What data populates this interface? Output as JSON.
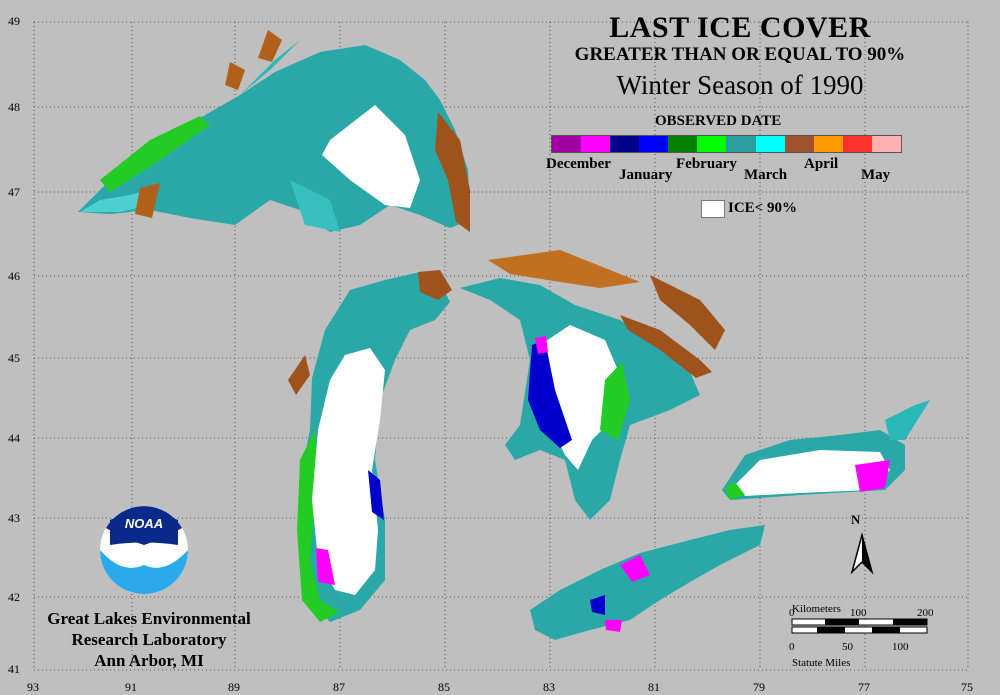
{
  "title": {
    "line1": "LAST ICE COVER",
    "line2": "GREATER THAN OR EQUAL TO 90%",
    "line3": "Winter Season of 1990"
  },
  "legend": {
    "heading": "OBSERVED DATE",
    "months": [
      "December",
      "January",
      "February",
      "March",
      "April",
      "May"
    ],
    "colors": [
      "#a000a0",
      "#ff00ff",
      "#00008b",
      "#0000ff",
      "#008000",
      "#00ff00",
      "#2a9d9d",
      "#00ffff",
      "#a0522d",
      "#ff9900",
      "#ff3030",
      "#ffb0b0"
    ],
    "ice_label": "ICE< 90%"
  },
  "axes": {
    "latitudes": [
      "49",
      "48",
      "47",
      "46",
      "45",
      "44",
      "43",
      "42",
      "41"
    ],
    "longitudes": [
      "93",
      "91",
      "89",
      "87",
      "85",
      "83",
      "81",
      "79",
      "77",
      "75"
    ]
  },
  "scale": {
    "km_label": "Kilometers",
    "km_ticks": [
      "0",
      "100",
      "200"
    ],
    "mi_ticks": [
      "0",
      "50",
      "100"
    ],
    "mi_label": "Statute Miles"
  },
  "north_label": "N",
  "logo_text": "NOAA",
  "org": {
    "line1": "Great Lakes Environmental",
    "line2": "Research Laboratory",
    "line3": "Ann Arbor, MI"
  }
}
